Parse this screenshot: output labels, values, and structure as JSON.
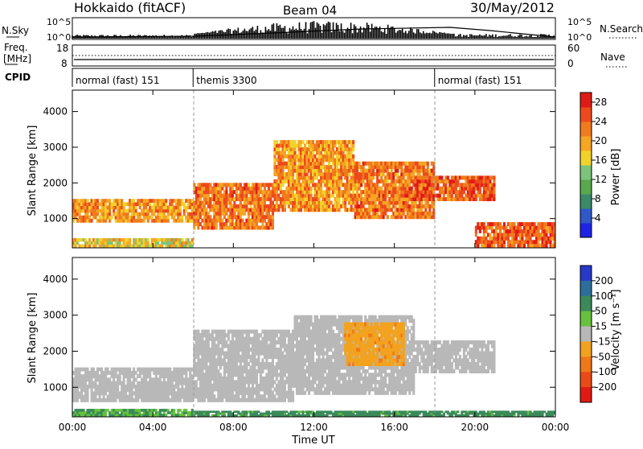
{
  "header": {
    "site": "Hokkaido (fitACF)",
    "beam": "Beam 04",
    "date": "30/May/2012"
  },
  "top_panels": {
    "nsky_label": "N.Sky",
    "nsky_ticks": [
      "10^5",
      "10^0"
    ],
    "nsearch_label": "N.Search",
    "nsearch_ticks": [
      "10^5",
      "10^0"
    ],
    "freq_label_1": "Freq.",
    "freq_label_2": "[MHz]",
    "freq_ticks": [
      "18",
      "8"
    ],
    "nave_label": "Nave",
    "nave_ticks": [
      "60",
      "0"
    ],
    "cpid_label": "CPID",
    "cpid_segments": [
      {
        "label": "normal (fast) 151",
        "start_h": 0,
        "end_h": 6
      },
      {
        "label": "themis 3300",
        "start_h": 6,
        "end_h": 18
      },
      {
        "label": "normal (fast) 151",
        "start_h": 18,
        "end_h": 24
      }
    ]
  },
  "power_colorbar": {
    "title": "Power [dB]",
    "ticks": [
      "4",
      "8",
      "12",
      "16",
      "20",
      "24",
      "28"
    ],
    "colors": [
      "#1f23e6",
      "#2f58c8",
      "#3a8a6a",
      "#58a84e",
      "#7cc47a",
      "#f2d22a",
      "#f5a623",
      "#f07a1e",
      "#ec4a1c",
      "#e01b16"
    ]
  },
  "velocity_colorbar": {
    "title": "Velocity [m s⁻¹]",
    "ticks": [
      "200",
      "100",
      "50",
      "15",
      "-15",
      "-50",
      "-100",
      "-200"
    ],
    "colors": [
      "#2838c8",
      "#2c6e9c",
      "#3b8a5a",
      "#66c23c",
      "#b8b8b8",
      "#f2a21e",
      "#f07818",
      "#ea4a16",
      "#e01a12"
    ]
  },
  "chart_data": [
    {
      "type": "heatmap",
      "title": "",
      "ylabel": "Slant Range [km]",
      "xlabel": "Time UT",
      "y_ticks": [
        1000,
        2000,
        3000,
        4000
      ],
      "ylim": [
        180,
        4600
      ],
      "x_ticks": [
        "00:00",
        "04:00",
        "08:00",
        "12:00",
        "16:00",
        "20:00",
        "00:00"
      ],
      "xlim_hours": [
        0,
        24
      ],
      "colorbar": "Power [dB]",
      "regions": [
        {
          "t0": 0,
          "t1": 6,
          "r0": 900,
          "r1": 1550,
          "value": 22
        },
        {
          "t0": 0,
          "t1": 6,
          "r0": 200,
          "r1": 450,
          "value": 18
        },
        {
          "t0": 6,
          "t1": 10,
          "r0": 700,
          "r1": 2000,
          "value": 24
        },
        {
          "t0": 10,
          "t1": 14,
          "r0": 1200,
          "r1": 3200,
          "value": 22
        },
        {
          "t0": 14,
          "t1": 18,
          "r0": 1000,
          "r1": 2600,
          "value": 24
        },
        {
          "t0": 17,
          "t1": 21,
          "r0": 1500,
          "r1": 2200,
          "value": 26
        },
        {
          "t0": 20,
          "t1": 24,
          "r0": 200,
          "r1": 900,
          "value": 26
        }
      ]
    },
    {
      "type": "heatmap",
      "title": "",
      "ylabel": "Slant Range [km]",
      "xlabel": "Time UT",
      "y_ticks": [
        1000,
        2000,
        3000,
        4000
      ],
      "ylim": [
        180,
        4600
      ],
      "x_ticks": [
        "00:00",
        "04:00",
        "08:00",
        "12:00",
        "16:00",
        "20:00",
        "00:00"
      ],
      "xlim_hours": [
        0,
        24
      ],
      "colorbar": "Velocity [m s⁻¹]",
      "regions": [
        {
          "t0": 0,
          "t1": 6,
          "r0": 600,
          "r1": 1550,
          "value": 0
        },
        {
          "t0": 0,
          "t1": 6,
          "r0": 200,
          "r1": 400,
          "value": 30
        },
        {
          "t0": 6,
          "t1": 11,
          "r0": 600,
          "r1": 2600,
          "value": 0
        },
        {
          "t0": 11,
          "t1": 17,
          "r0": 800,
          "r1": 3000,
          "value": 0
        },
        {
          "t0": 13.5,
          "t1": 16.5,
          "r0": 1600,
          "r1": 2800,
          "value": -40
        },
        {
          "t0": 17,
          "t1": 21,
          "r0": 1400,
          "r1": 2300,
          "value": 0
        },
        {
          "t0": 6,
          "t1": 24,
          "r0": 200,
          "r1": 350,
          "value": 40
        }
      ]
    }
  ]
}
